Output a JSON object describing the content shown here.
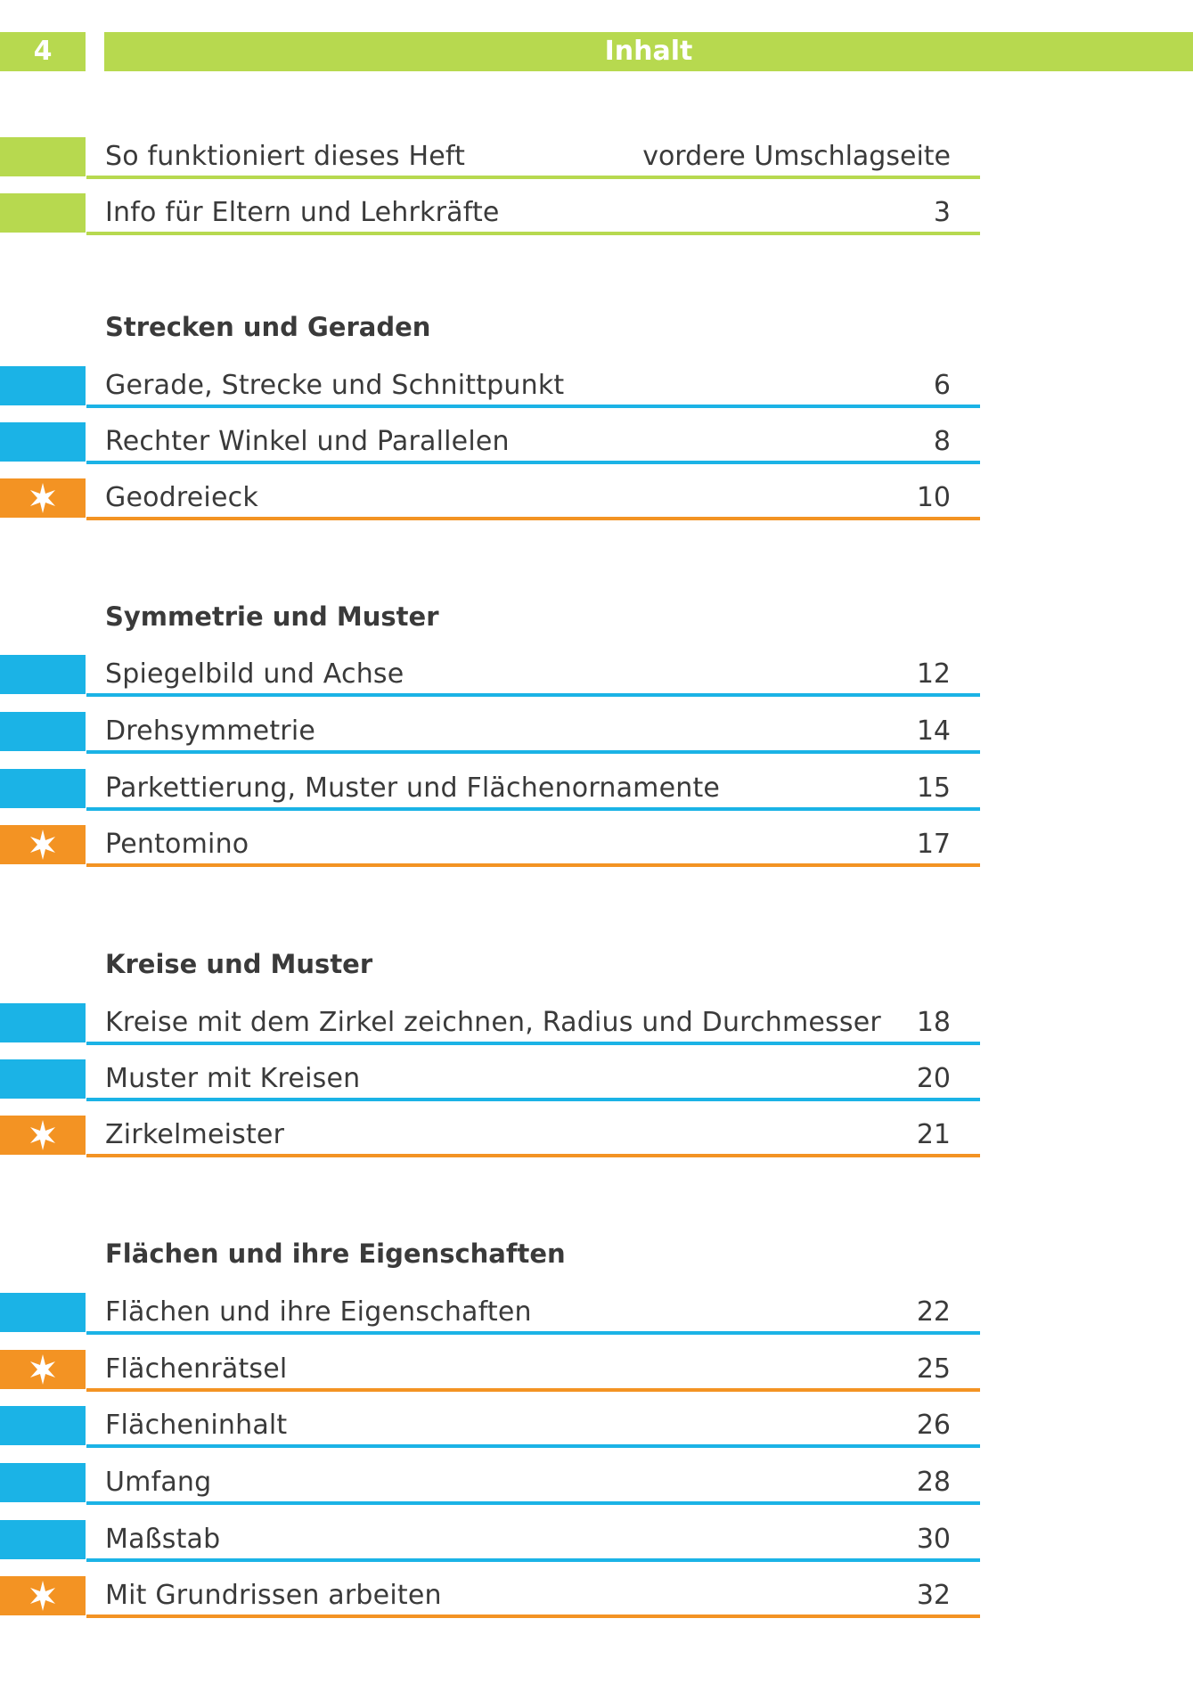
{
  "header": {
    "page_number": "4",
    "title": "Inhalt"
  },
  "colors": {
    "green": "#b7d94f",
    "blue": "#1bb3e6",
    "orange": "#f39323"
  },
  "intro": [
    {
      "label": "So funktioniert dieses Heft",
      "page": "vordere Umschlagseite",
      "style": "green"
    },
    {
      "label": "Info für Eltern und Lehrkräfte",
      "page": "3",
      "style": "green"
    }
  ],
  "sections": [
    {
      "title": "Strecken und Geraden",
      "items": [
        {
          "label": "Gerade, Strecke und Schnittpunkt",
          "page": "6",
          "style": "blue"
        },
        {
          "label": "Rechter Winkel und Parallelen",
          "page": "8",
          "style": "blue"
        },
        {
          "label": "Geodreieck",
          "page": "10",
          "style": "orange",
          "icon": "star-icon"
        }
      ]
    },
    {
      "title": "Symmetrie und Muster",
      "items": [
        {
          "label": "Spiegelbild und Achse",
          "page": "12",
          "style": "blue"
        },
        {
          "label": "Drehsymmetrie",
          "page": "14",
          "style": "blue"
        },
        {
          "label": "Parkettierung, Muster und Flächenornamente",
          "page": "15",
          "style": "blue"
        },
        {
          "label": "Pentomino",
          "page": "17",
          "style": "orange",
          "icon": "star-icon"
        }
      ]
    },
    {
      "title": "Kreise und Muster",
      "items": [
        {
          "label": "Kreise mit dem Zirkel zeichnen, Radius und Durchmesser",
          "page": "18",
          "style": "blue"
        },
        {
          "label": "Muster mit Kreisen",
          "page": "20",
          "style": "blue"
        },
        {
          "label": "Zirkelmeister",
          "page": "21",
          "style": "orange",
          "icon": "star-icon"
        }
      ]
    },
    {
      "title": "Flächen und ihre Eigenschaften",
      "items": [
        {
          "label": "Flächen und ihre Eigenschaften",
          "page": "22",
          "style": "blue"
        },
        {
          "label": "Flächenrätsel",
          "page": "25",
          "style": "orange",
          "icon": "star-icon"
        },
        {
          "label": "Flächeninhalt",
          "page": "26",
          "style": "blue"
        },
        {
          "label": "Umfang",
          "page": "28",
          "style": "blue"
        },
        {
          "label": "Maßstab",
          "page": "30",
          "style": "blue"
        },
        {
          "label": "Mit Grundrissen arbeiten",
          "page": "32",
          "style": "orange",
          "icon": "star-icon"
        }
      ]
    }
  ]
}
